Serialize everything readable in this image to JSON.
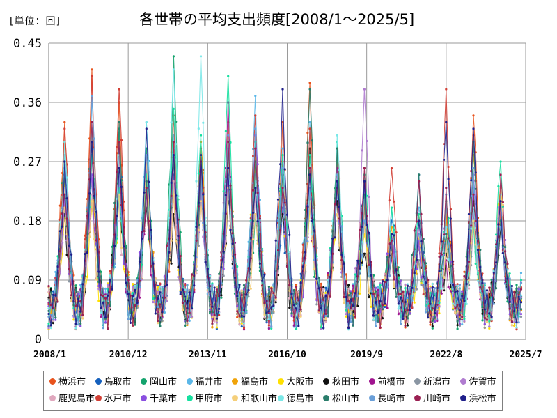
{
  "unit_label": "[単位：回]",
  "chart_data": {
    "type": "line",
    "title": "各世帯の平均支出頻度[2008/1～2025/5]",
    "unit": "[単位：回]",
    "xlabel": "",
    "ylabel": "",
    "ylim": [
      0,
      0.45
    ],
    "yticks": [
      "0",
      "0.09",
      "0.18",
      "0.27",
      "0.36",
      "0.45"
    ],
    "ytick_values": [
      0,
      0.09,
      0.18,
      0.27,
      0.36,
      0.45
    ],
    "x_start": "2008/1",
    "x_end": "2025/5",
    "x_axis_end": "2025/7",
    "xtick_labels": [
      "2008/1",
      "2010/12",
      "2013/11",
      "2016/10",
      "2019/9",
      "2022/8",
      "2025/7"
    ],
    "xtick_month_index": [
      0,
      35,
      70,
      105,
      140,
      175,
      210
    ],
    "grid": true,
    "legend": "bottom",
    "seasonal_peak_month": 8,
    "series": [
      {
        "name": "横浜市",
        "color": "#e8531d",
        "peaks": [
          0.33,
          0.41,
          0.36,
          0.26,
          0.22,
          0.3,
          0.29,
          0.28,
          0.33,
          0.39,
          0.27,
          0.21,
          0.14,
          0.19,
          0.2,
          0.34,
          0.21,
          0.14
        ]
      },
      {
        "name": "鳥取市",
        "color": "#1560bd",
        "peaks": [
          0.26,
          0.3,
          0.29,
          0.26,
          0.25,
          0.27,
          0.25,
          0.22,
          0.2,
          0.26,
          0.29,
          0.24,
          0.18,
          0.25,
          0.15,
          0.23,
          0.21,
          0.14
        ]
      },
      {
        "name": "岡山市",
        "color": "#14a36d",
        "peaks": [
          0.28,
          0.31,
          0.32,
          0.29,
          0.43,
          0.24,
          0.21,
          0.19,
          0.26,
          0.23,
          0.28,
          0.21,
          0.16,
          0.12,
          0.21,
          0.18,
          0.19,
          0.13
        ]
      },
      {
        "name": "福井市",
        "color": "#5bb7e8",
        "peaks": [
          0.28,
          0.37,
          0.26,
          0.33,
          0.31,
          0.22,
          0.24,
          0.37,
          0.29,
          0.33,
          0.22,
          0.18,
          0.2,
          0.2,
          0.22,
          0.24,
          0.2,
          0.14
        ]
      },
      {
        "name": "福島市",
        "color": "#f0a30a",
        "peaks": [
          0.24,
          0.3,
          0.26,
          0.26,
          0.24,
          0.3,
          0.33,
          0.26,
          0.25,
          0.21,
          0.25,
          0.2,
          0.17,
          0.16,
          0.19,
          0.28,
          0.23,
          0.12
        ]
      },
      {
        "name": "大阪市",
        "color": "#ffe000",
        "peaks": [
          0.2,
          0.2,
          0.22,
          0.21,
          0.23,
          0.28,
          0.24,
          0.29,
          0.24,
          0.2,
          0.24,
          0.16,
          0.16,
          0.12,
          0.14,
          0.2,
          0.23,
          0.11
        ]
      },
      {
        "name": "秋田市",
        "color": "#111111",
        "peaks": [
          0.19,
          0.21,
          0.26,
          0.2,
          0.19,
          0.25,
          0.21,
          0.23,
          0.19,
          0.29,
          0.21,
          0.13,
          0.13,
          0.14,
          0.13,
          0.21,
          0.17,
          0.1
        ]
      },
      {
        "name": "前橋市",
        "color": "#a0148f",
        "peaks": [
          0.22,
          0.28,
          0.28,
          0.22,
          0.27,
          0.26,
          0.36,
          0.3,
          0.25,
          0.22,
          0.26,
          0.24,
          0.12,
          0.18,
          0.12,
          0.19,
          0.19,
          0.11
        ]
      },
      {
        "name": "新潟市",
        "color": "#8a96a3",
        "peaks": [
          0.21,
          0.24,
          0.24,
          0.24,
          0.24,
          0.23,
          0.23,
          0.24,
          0.22,
          0.2,
          0.23,
          0.2,
          0.14,
          0.12,
          0.16,
          0.18,
          0.21,
          0.1
        ]
      },
      {
        "name": "佐賀市",
        "color": "#b07cd0",
        "peaks": [
          0.21,
          0.25,
          0.24,
          0.21,
          0.22,
          0.24,
          0.24,
          0.25,
          0.24,
          0.23,
          0.3,
          0.38,
          0.15,
          0.18,
          0.2,
          0.2,
          0.22,
          0.1
        ]
      },
      {
        "name": "鹿児島市",
        "color": "#e0a8be",
        "peaks": [
          0.23,
          0.22,
          0.21,
          0.25,
          0.24,
          0.21,
          0.23,
          0.22,
          0.23,
          0.26,
          0.25,
          0.26,
          0.14,
          0.14,
          0.16,
          0.17,
          0.2,
          0.12
        ]
      },
      {
        "name": "水戸市",
        "color": "#d23f35",
        "peaks": [
          0.32,
          0.4,
          0.38,
          0.28,
          0.34,
          0.29,
          0.31,
          0.34,
          0.27,
          0.32,
          0.29,
          0.21,
          0.26,
          0.15,
          0.38,
          0.31,
          0.2,
          0.13
        ]
      },
      {
        "name": "千葉市",
        "color": "#8a4fe0",
        "peaks": [
          0.22,
          0.25,
          0.25,
          0.26,
          0.28,
          0.26,
          0.25,
          0.31,
          0.23,
          0.23,
          0.24,
          0.23,
          0.16,
          0.15,
          0.15,
          0.25,
          0.21,
          0.12
        ]
      },
      {
        "name": "甲府市",
        "color": "#16e0a0",
        "peaks": [
          0.26,
          0.28,
          0.23,
          0.25,
          0.35,
          0.31,
          0.4,
          0.3,
          0.28,
          0.28,
          0.3,
          0.25,
          0.2,
          0.19,
          0.21,
          0.18,
          0.27,
          0.18
        ]
      },
      {
        "name": "和歌山市",
        "color": "#f5cf7a",
        "peaks": [
          0.2,
          0.21,
          0.22,
          0.27,
          0.22,
          0.21,
          0.23,
          0.19,
          0.24,
          0.21,
          0.19,
          0.17,
          0.14,
          0.16,
          0.15,
          0.18,
          0.23,
          0.11
        ]
      },
      {
        "name": "徳島市",
        "color": "#7be8e8",
        "peaks": [
          0.3,
          0.32,
          0.28,
          0.33,
          0.41,
          0.43,
          0.3,
          0.24,
          0.26,
          0.23,
          0.31,
          0.22,
          0.16,
          0.18,
          0.17,
          0.2,
          0.22,
          0.13
        ]
      },
      {
        "name": "松山市",
        "color": "#2a7d6b",
        "peaks": [
          0.25,
          0.3,
          0.33,
          0.24,
          0.27,
          0.27,
          0.29,
          0.27,
          0.25,
          0.38,
          0.29,
          0.22,
          0.14,
          0.25,
          0.16,
          0.3,
          0.18,
          0.13
        ]
      },
      {
        "name": "長崎市",
        "color": "#6a9fd8",
        "peaks": [
          0.26,
          0.37,
          0.25,
          0.28,
          0.29,
          0.26,
          0.31,
          0.32,
          0.26,
          0.23,
          0.25,
          0.18,
          0.15,
          0.16,
          0.2,
          0.26,
          0.17,
          0.13
        ]
      },
      {
        "name": "川崎市",
        "color": "#9a2052",
        "peaks": [
          0.22,
          0.33,
          0.3,
          0.23,
          0.3,
          0.27,
          0.3,
          0.29,
          0.23,
          0.26,
          0.23,
          0.26,
          0.15,
          0.24,
          0.23,
          0.22,
          0.25,
          0.12
        ]
      },
      {
        "name": "浜松市",
        "color": "#1f1f8a",
        "peaks": [
          0.27,
          0.3,
          0.26,
          0.32,
          0.28,
          0.28,
          0.26,
          0.23,
          0.38,
          0.25,
          0.24,
          0.24,
          0.16,
          0.18,
          0.33,
          0.32,
          0.21,
          0.13
        ]
      }
    ]
  }
}
